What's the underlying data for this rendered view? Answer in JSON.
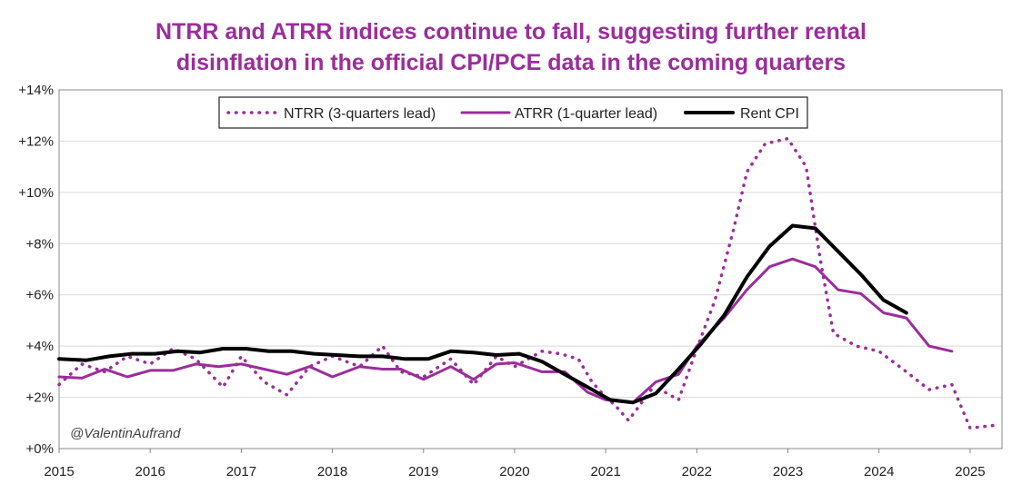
{
  "chart_data": {
    "type": "line",
    "title_line1": "NTRR and ATRR indices continue to fall, suggesting further rental",
    "title_line2": "disinflation in the official CPI/PCE data in the coming quarters",
    "xlabel": "",
    "ylabel": "",
    "xlim": [
      2015,
      2025.35
    ],
    "ylim": [
      0,
      14
    ],
    "y_ticks": [
      {
        "value": 0,
        "label": "+0%"
      },
      {
        "value": 2,
        "label": "+2%"
      },
      {
        "value": 4,
        "label": "+4%"
      },
      {
        "value": 6,
        "label": "+6%"
      },
      {
        "value": 8,
        "label": "+8%"
      },
      {
        "value": 10,
        "label": "+10%"
      },
      {
        "value": 12,
        "label": "+12%"
      },
      {
        "value": 14,
        "label": "+14%"
      }
    ],
    "x_ticks": [
      {
        "value": 2015,
        "label": "2015"
      },
      {
        "value": 2016,
        "label": "2016"
      },
      {
        "value": 2017,
        "label": "2017"
      },
      {
        "value": 2018,
        "label": "2018"
      },
      {
        "value": 2019,
        "label": "2019"
      },
      {
        "value": 2020,
        "label": "2020"
      },
      {
        "value": 2021,
        "label": "2021"
      },
      {
        "value": 2022,
        "label": "2022"
      },
      {
        "value": 2023,
        "label": "2023"
      },
      {
        "value": 2024,
        "label": "2024"
      },
      {
        "value": 2025,
        "label": "2025"
      }
    ],
    "legend_position": "top-center",
    "watermark": "@ValentinAufrand",
    "series": [
      {
        "name": "NTRR (3-quarters lead)",
        "color": "#9b2d9b",
        "style": "dotted",
        "points": [
          [
            2015.0,
            2.5
          ],
          [
            2015.25,
            3.3
          ],
          [
            2015.5,
            3.0
          ],
          [
            2015.75,
            3.6
          ],
          [
            2016.0,
            3.3
          ],
          [
            2016.25,
            3.9
          ],
          [
            2016.5,
            3.5
          ],
          [
            2016.8,
            2.4
          ],
          [
            2017.0,
            3.6
          ],
          [
            2017.25,
            2.6
          ],
          [
            2017.5,
            2.1
          ],
          [
            2017.75,
            3.2
          ],
          [
            2018.0,
            3.6
          ],
          [
            2018.3,
            3.2
          ],
          [
            2018.55,
            4.0
          ],
          [
            2018.75,
            3.0
          ],
          [
            2019.0,
            2.8
          ],
          [
            2019.3,
            3.5
          ],
          [
            2019.55,
            2.5
          ],
          [
            2019.8,
            3.6
          ],
          [
            2020.0,
            3.2
          ],
          [
            2020.3,
            3.8
          ],
          [
            2020.5,
            3.7
          ],
          [
            2020.7,
            3.5
          ],
          [
            2020.85,
            2.6
          ],
          [
            2021.0,
            2.0
          ],
          [
            2021.1,
            1.7
          ],
          [
            2021.25,
            1.1
          ],
          [
            2021.5,
            2.3
          ],
          [
            2021.65,
            2.2
          ],
          [
            2021.8,
            1.9
          ],
          [
            2022.0,
            3.9
          ],
          [
            2022.2,
            5.8
          ],
          [
            2022.4,
            8.5
          ],
          [
            2022.55,
            10.8
          ],
          [
            2022.75,
            11.9
          ],
          [
            2023.0,
            12.1
          ],
          [
            2023.2,
            11.0
          ],
          [
            2023.35,
            7.5
          ],
          [
            2023.5,
            4.5
          ],
          [
            2023.75,
            4.0
          ],
          [
            2024.0,
            3.8
          ],
          [
            2024.3,
            3.0
          ],
          [
            2024.55,
            2.3
          ],
          [
            2024.8,
            2.5
          ],
          [
            2025.0,
            0.8
          ],
          [
            2025.25,
            0.9
          ]
        ]
      },
      {
        "name": "ATRR (1-quarter lead)",
        "color": "#9b2d9b",
        "style": "solid",
        "points": [
          [
            2015.0,
            2.8
          ],
          [
            2015.25,
            2.75
          ],
          [
            2015.5,
            3.1
          ],
          [
            2015.75,
            2.8
          ],
          [
            2016.0,
            3.05
          ],
          [
            2016.25,
            3.05
          ],
          [
            2016.5,
            3.3
          ],
          [
            2016.75,
            3.2
          ],
          [
            2017.0,
            3.3
          ],
          [
            2017.25,
            3.1
          ],
          [
            2017.5,
            2.9
          ],
          [
            2017.75,
            3.2
          ],
          [
            2018.0,
            2.8
          ],
          [
            2018.3,
            3.2
          ],
          [
            2018.55,
            3.1
          ],
          [
            2018.75,
            3.1
          ],
          [
            2019.0,
            2.7
          ],
          [
            2019.3,
            3.2
          ],
          [
            2019.55,
            2.7
          ],
          [
            2019.8,
            3.3
          ],
          [
            2020.0,
            3.35
          ],
          [
            2020.3,
            3.0
          ],
          [
            2020.55,
            3.0
          ],
          [
            2020.8,
            2.2
          ],
          [
            2021.0,
            1.9
          ],
          [
            2021.3,
            1.8
          ],
          [
            2021.55,
            2.6
          ],
          [
            2021.8,
            2.9
          ],
          [
            2022.0,
            4.0
          ],
          [
            2022.3,
            5.1
          ],
          [
            2022.55,
            6.2
          ],
          [
            2022.8,
            7.1
          ],
          [
            2023.05,
            7.4
          ],
          [
            2023.3,
            7.1
          ],
          [
            2023.55,
            6.2
          ],
          [
            2023.8,
            6.05
          ],
          [
            2024.05,
            5.3
          ],
          [
            2024.3,
            5.1
          ],
          [
            2024.55,
            4.0
          ],
          [
            2024.8,
            3.8
          ]
        ]
      },
      {
        "name": "Rent CPI",
        "color": "#000000",
        "style": "solid-thick",
        "points": [
          [
            2015.0,
            3.5
          ],
          [
            2015.3,
            3.45
          ],
          [
            2015.55,
            3.6
          ],
          [
            2015.8,
            3.7
          ],
          [
            2016.05,
            3.7
          ],
          [
            2016.3,
            3.8
          ],
          [
            2016.55,
            3.75
          ],
          [
            2016.8,
            3.9
          ],
          [
            2017.05,
            3.9
          ],
          [
            2017.3,
            3.8
          ],
          [
            2017.55,
            3.8
          ],
          [
            2017.8,
            3.7
          ],
          [
            2018.05,
            3.65
          ],
          [
            2018.3,
            3.6
          ],
          [
            2018.55,
            3.6
          ],
          [
            2018.8,
            3.5
          ],
          [
            2019.05,
            3.5
          ],
          [
            2019.3,
            3.8
          ],
          [
            2019.55,
            3.75
          ],
          [
            2019.8,
            3.65
          ],
          [
            2020.05,
            3.7
          ],
          [
            2020.3,
            3.4
          ],
          [
            2020.55,
            2.9
          ],
          [
            2020.8,
            2.4
          ],
          [
            2021.05,
            1.9
          ],
          [
            2021.3,
            1.8
          ],
          [
            2021.55,
            2.15
          ],
          [
            2021.8,
            3.1
          ],
          [
            2022.05,
            4.1
          ],
          [
            2022.3,
            5.2
          ],
          [
            2022.55,
            6.7
          ],
          [
            2022.8,
            7.9
          ],
          [
            2023.05,
            8.7
          ],
          [
            2023.3,
            8.6
          ],
          [
            2023.55,
            7.7
          ],
          [
            2023.8,
            6.8
          ],
          [
            2024.05,
            5.8
          ],
          [
            2024.3,
            5.3
          ]
        ]
      }
    ]
  }
}
